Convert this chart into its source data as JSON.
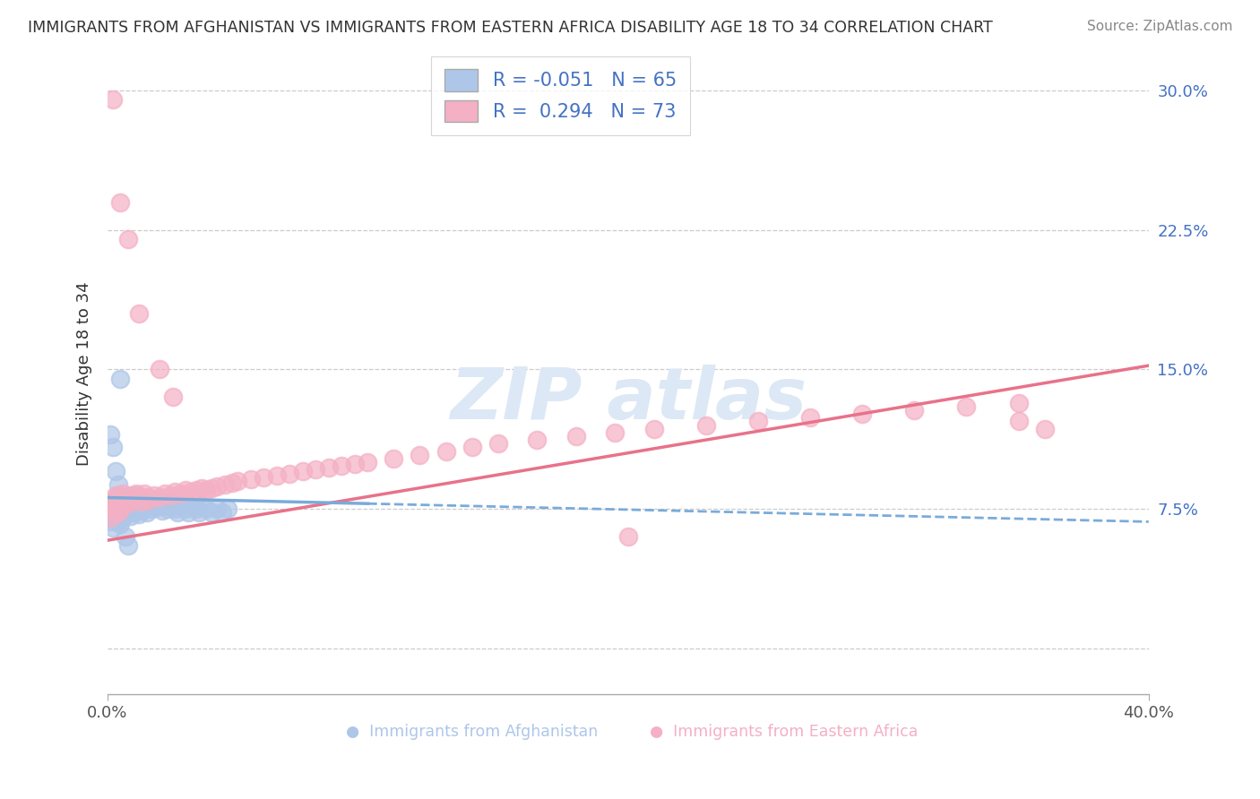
{
  "title": "IMMIGRANTS FROM AFGHANISTAN VS IMMIGRANTS FROM EASTERN AFRICA DISABILITY AGE 18 TO 34 CORRELATION CHART",
  "source": "Source: ZipAtlas.com",
  "ylabel": "Disability Age 18 to 34",
  "xlim": [
    0.0,
    0.4
  ],
  "ylim": [
    -0.025,
    0.32
  ],
  "ytick_vals": [
    0.0,
    0.075,
    0.15,
    0.225,
    0.3
  ],
  "ytick_labels": [
    "",
    "7.5%",
    "15.0%",
    "22.5%",
    "30.0%"
  ],
  "xtick_vals": [
    0.0,
    0.4
  ],
  "xtick_labels": [
    "0.0%",
    "40.0%"
  ],
  "r_afg": -0.051,
  "n_afg": 65,
  "r_ea": 0.294,
  "n_ea": 73,
  "color_afg": "#aec6e8",
  "color_ea": "#f4b0c4",
  "line_color_afg": "#7aabda",
  "line_color_ea": "#e8728a",
  "background_color": "#ffffff",
  "grid_color": "#cccccc",
  "title_color": "#333333",
  "source_color": "#888888",
  "axis_label_color": "#333333",
  "tick_color_y": "#4472c4",
  "legend_box_color": "#4472c4",
  "watermark_color": "#dce8f5",
  "afg_line_x0": 0.0,
  "afg_line_x1": 0.4,
  "afg_line_y0": 0.081,
  "afg_line_y1": 0.068,
  "afg_line_solid_x1": 0.1,
  "ea_line_x0": 0.0,
  "ea_line_x1": 0.4,
  "ea_line_y0": 0.058,
  "ea_line_y1": 0.152,
  "afg_points_x": [
    0.001,
    0.001,
    0.002,
    0.002,
    0.002,
    0.003,
    0.003,
    0.003,
    0.004,
    0.004,
    0.004,
    0.005,
    0.005,
    0.005,
    0.006,
    0.006,
    0.006,
    0.007,
    0.007,
    0.008,
    0.008,
    0.009,
    0.009,
    0.01,
    0.01,
    0.011,
    0.011,
    0.012,
    0.012,
    0.013,
    0.013,
    0.014,
    0.015,
    0.015,
    0.016,
    0.017,
    0.018,
    0.019,
    0.02,
    0.021,
    0.022,
    0.023,
    0.024,
    0.025,
    0.026,
    0.027,
    0.028,
    0.03,
    0.031,
    0.032,
    0.034,
    0.035,
    0.036,
    0.038,
    0.04,
    0.042,
    0.044,
    0.046,
    0.001,
    0.002,
    0.003,
    0.004,
    0.005,
    0.007,
    0.008
  ],
  "afg_points_y": [
    0.074,
    0.068,
    0.078,
    0.072,
    0.065,
    0.08,
    0.075,
    0.07,
    0.082,
    0.076,
    0.068,
    0.079,
    0.073,
    0.067,
    0.081,
    0.076,
    0.07,
    0.078,
    0.072,
    0.08,
    0.074,
    0.077,
    0.071,
    0.079,
    0.073,
    0.082,
    0.076,
    0.078,
    0.072,
    0.08,
    0.074,
    0.076,
    0.079,
    0.073,
    0.077,
    0.075,
    0.078,
    0.076,
    0.08,
    0.074,
    0.077,
    0.075,
    0.079,
    0.077,
    0.075,
    0.073,
    0.077,
    0.075,
    0.073,
    0.077,
    0.075,
    0.073,
    0.077,
    0.075,
    0.073,
    0.075,
    0.073,
    0.075,
    0.115,
    0.108,
    0.095,
    0.088,
    0.145,
    0.06,
    0.055
  ],
  "ea_points_x": [
    0.001,
    0.001,
    0.002,
    0.002,
    0.003,
    0.003,
    0.004,
    0.004,
    0.005,
    0.005,
    0.006,
    0.006,
    0.007,
    0.008,
    0.009,
    0.01,
    0.011,
    0.012,
    0.013,
    0.014,
    0.015,
    0.016,
    0.018,
    0.02,
    0.022,
    0.024,
    0.026,
    0.028,
    0.03,
    0.032,
    0.034,
    0.036,
    0.038,
    0.04,
    0.042,
    0.045,
    0.048,
    0.05,
    0.055,
    0.06,
    0.065,
    0.07,
    0.075,
    0.08,
    0.085,
    0.09,
    0.095,
    0.1,
    0.11,
    0.12,
    0.13,
    0.14,
    0.15,
    0.165,
    0.18,
    0.195,
    0.21,
    0.23,
    0.25,
    0.27,
    0.29,
    0.31,
    0.33,
    0.35,
    0.002,
    0.012,
    0.02,
    0.025,
    0.005,
    0.008,
    0.35,
    0.36,
    0.2
  ],
  "ea_points_y": [
    0.076,
    0.07,
    0.08,
    0.074,
    0.082,
    0.076,
    0.079,
    0.073,
    0.081,
    0.075,
    0.083,
    0.077,
    0.08,
    0.078,
    0.082,
    0.08,
    0.083,
    0.081,
    0.079,
    0.083,
    0.081,
    0.08,
    0.082,
    0.081,
    0.083,
    0.082,
    0.084,
    0.083,
    0.085,
    0.084,
    0.085,
    0.086,
    0.085,
    0.086,
    0.087,
    0.088,
    0.089,
    0.09,
    0.091,
    0.092,
    0.093,
    0.094,
    0.095,
    0.096,
    0.097,
    0.098,
    0.099,
    0.1,
    0.102,
    0.104,
    0.106,
    0.108,
    0.11,
    0.112,
    0.114,
    0.116,
    0.118,
    0.12,
    0.122,
    0.124,
    0.126,
    0.128,
    0.13,
    0.132,
    0.295,
    0.18,
    0.15,
    0.135,
    0.24,
    0.22,
    0.122,
    0.118,
    0.06
  ]
}
